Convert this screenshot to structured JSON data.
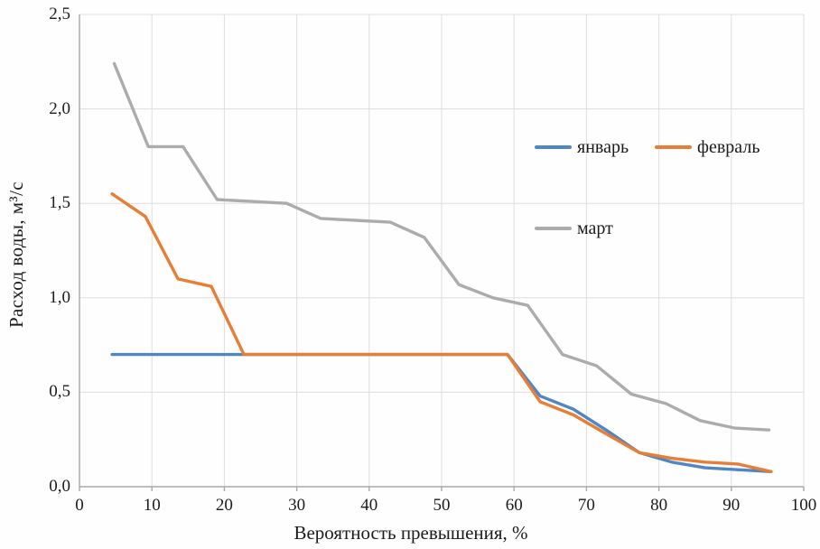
{
  "chart_data": {
    "type": "line",
    "title": "",
    "xlabel": "Вероятность превышения, %",
    "ylabel": "Расход воды, м³/с",
    "xlim": [
      0,
      100
    ],
    "ylim": [
      0,
      2.5
    ],
    "grid": true,
    "legend_position": "inside-right",
    "decimal_separator": ",",
    "axis_color": "#a9a9a9",
    "grid_color": "#dedede",
    "x_ticks": {
      "values": [
        0,
        10,
        20,
        30,
        40,
        50,
        60,
        70,
        80,
        90,
        100
      ],
      "labels": [
        "0",
        "10",
        "20",
        "30",
        "40",
        "50",
        "60",
        "70",
        "80",
        "90",
        "100"
      ]
    },
    "y_ticks": {
      "values": [
        0,
        0.5,
        1.0,
        1.5,
        2.0,
        2.5
      ],
      "labels": [
        "0,0",
        "0,5",
        "1,0",
        "1,5",
        "2,0",
        "2,5"
      ]
    },
    "series": [
      {
        "key": "january",
        "name": "январь",
        "color": "#4e86c6",
        "x": [
          4.5,
          9.1,
          13.6,
          18.2,
          22.7,
          27.3,
          31.8,
          36.4,
          40.9,
          45.5,
          50.0,
          54.5,
          59.1,
          63.6,
          68.2,
          72.7,
          77.3,
          81.8,
          86.4,
          90.9,
          95.5
        ],
        "values": [
          0.7,
          0.7,
          0.7,
          0.7,
          0.7,
          0.7,
          0.7,
          0.7,
          0.7,
          0.7,
          0.7,
          0.7,
          0.7,
          0.48,
          0.41,
          0.3,
          0.18,
          0.13,
          0.1,
          0.09,
          0.08
        ]
      },
      {
        "key": "february",
        "name": "февраль",
        "color": "#e87e35",
        "x": [
          4.5,
          9.1,
          13.6,
          18.2,
          22.7,
          27.3,
          31.8,
          36.4,
          40.9,
          45.5,
          50.0,
          54.5,
          59.1,
          63.6,
          68.2,
          72.7,
          77.3,
          81.8,
          86.4,
          90.9,
          95.5
        ],
        "values": [
          1.55,
          1.43,
          1.1,
          1.06,
          0.7,
          0.7,
          0.7,
          0.7,
          0.7,
          0.7,
          0.7,
          0.7,
          0.7,
          0.45,
          0.38,
          0.28,
          0.18,
          0.15,
          0.13,
          0.12,
          0.08
        ]
      },
      {
        "key": "march",
        "name": "март",
        "color": "#aeacab",
        "x": [
          4.8,
          9.5,
          14.3,
          19.0,
          23.8,
          28.6,
          33.3,
          38.1,
          42.9,
          47.6,
          52.4,
          57.1,
          61.9,
          66.7,
          71.4,
          76.2,
          81.0,
          85.7,
          90.5,
          95.2
        ],
        "values": [
          2.24,
          1.8,
          1.8,
          1.52,
          1.51,
          1.5,
          1.42,
          1.41,
          1.4,
          1.32,
          1.07,
          1.0,
          0.96,
          0.7,
          0.64,
          0.49,
          0.44,
          0.35,
          0.31,
          0.3
        ]
      }
    ]
  }
}
